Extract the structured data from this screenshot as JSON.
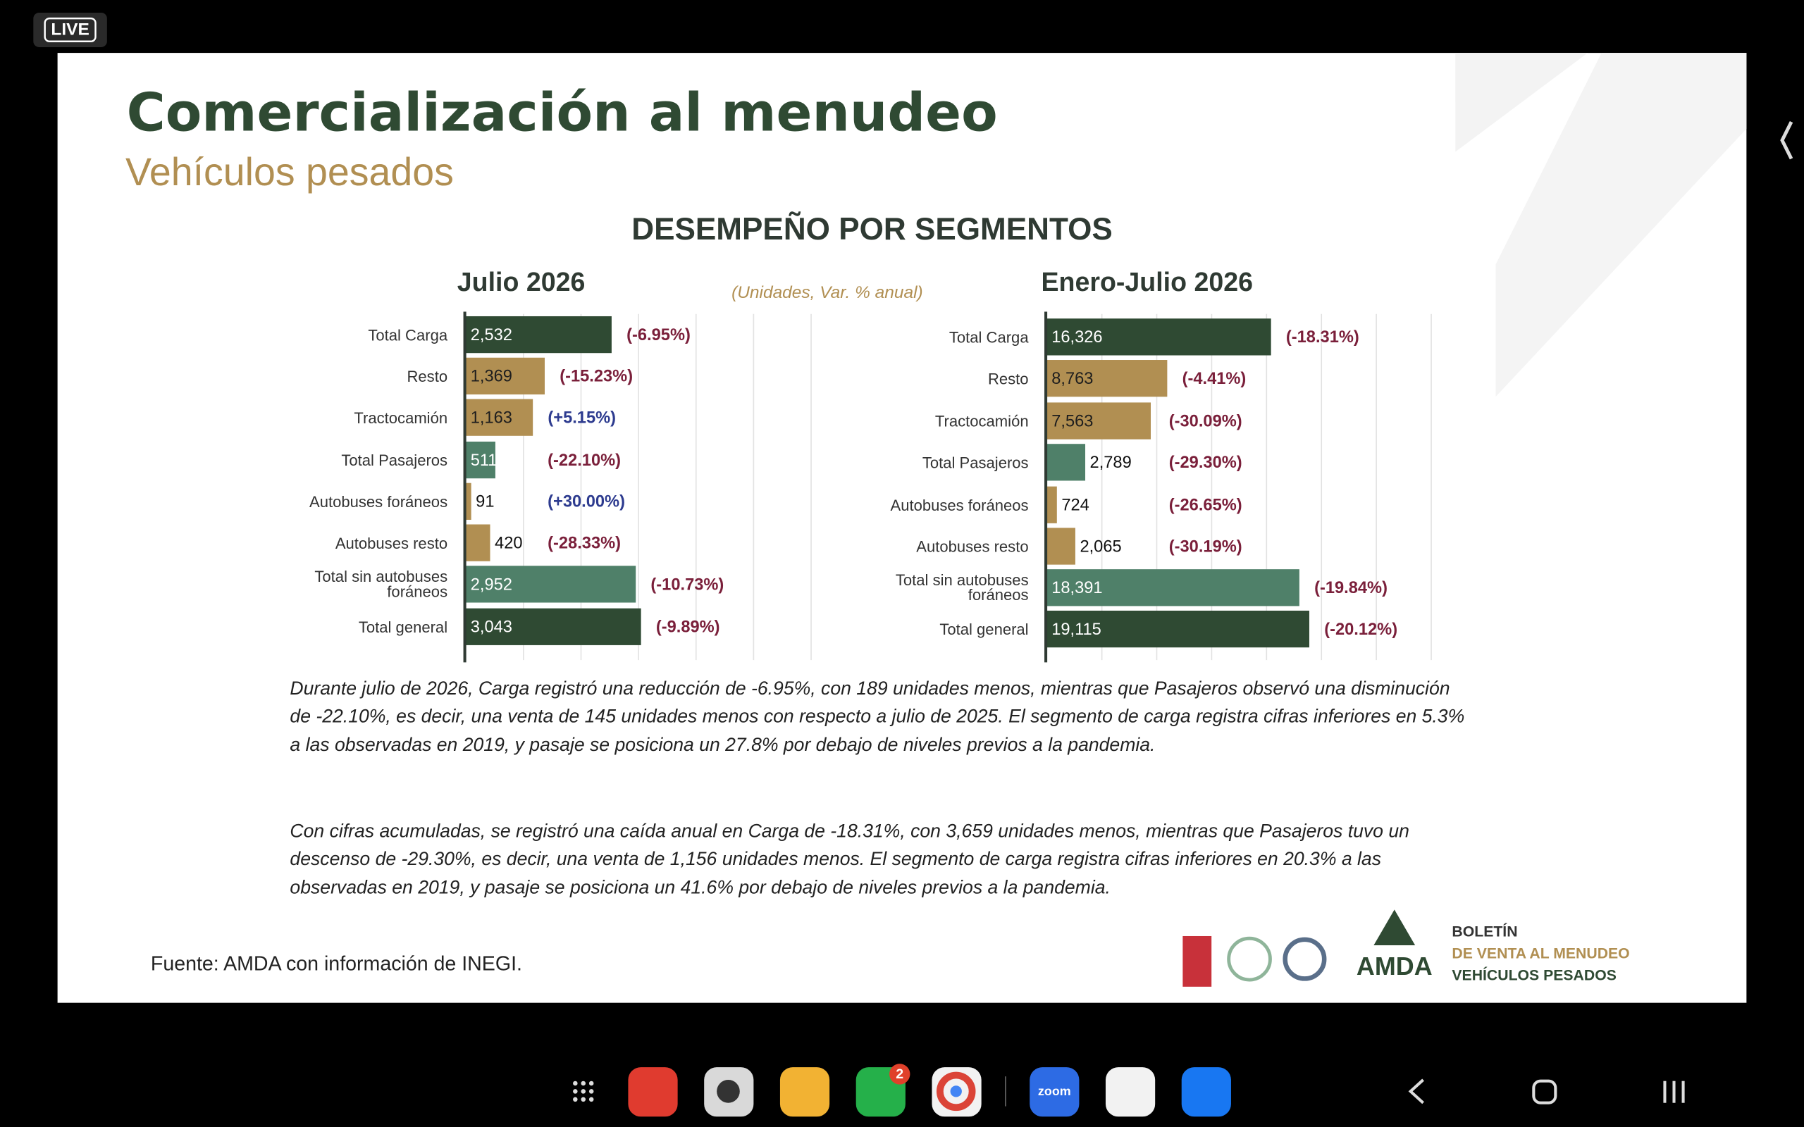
{
  "live_badge": "LIVE",
  "slide": {
    "title": "Comercialización al menudeo",
    "subtitle": "Vehículos pesados",
    "section_title": "DESEMPEÑO POR SEGMENTOS",
    "units_note": "(Unidades, Var. % anual)",
    "paragraphs": [
      "Durante julio de 2026, Carga registró una reducción de -6.95%, con 189 unidades menos, mientras que Pasajeros observó una disminución de -22.10%, es decir, una venta de 145 unidades menos con respecto a julio de 2025. El segmento de carga registra cifras inferiores en 5.3% a las observadas en 2019, y pasaje se posiciona un 27.8% por debajo de niveles previos a la pandemia.",
      "Con cifras acumuladas, se registró una caída anual en Carga de -18.31%, con 3,659 unidades menos, mientras que Pasajeros tuvo un descenso de -29.30%, es decir, una venta de 1,156 unidades menos. El segmento de carga registra cifras inferiores en 20.3% a las observadas en 2019, y pasaje se posiciona un 41.6% por debajo de niveles previos a la pandemia."
    ],
    "source": "Fuente: AMDA con información de INEGI.",
    "logo_text": "AMDA",
    "bulletin": [
      "BOLETÍN",
      "DE VENTA AL MENUDEO",
      "VEHÍCULOS PESADOS"
    ]
  },
  "chart_data": [
    {
      "type": "hbar",
      "title": "Julio 2026",
      "categories": [
        "Total Carga",
        "Resto",
        "Tractocamión",
        "Total Pasajeros",
        "Autobuses foráneos",
        "Autobuses resto",
        "Total sin autobuses foráneos",
        "Total general"
      ],
      "values": [
        2532,
        1369,
        1163,
        511,
        91,
        420,
        2952,
        3043
      ],
      "value_labels": [
        "2,532",
        "1,369",
        "1,163",
        "511",
        "91",
        "420",
        "2,952",
        "3,043"
      ],
      "change_labels": [
        "(-6.95%)",
        "(-15.23%)",
        "(+5.15%)",
        "(-22.10%)",
        "(+30.00%)",
        "(-28.33%)",
        "(-10.73%)",
        "(-9.89%)"
      ],
      "colors": [
        "#2f4a33",
        "#b18f52",
        "#b18f52",
        "#4f8069",
        "#b18f52",
        "#b18f52",
        "#4f8069",
        "#2f4a33"
      ],
      "xlim": [
        0,
        6000
      ],
      "xticks": [
        0,
        1000,
        2000,
        3000,
        4000,
        5000,
        6000
      ],
      "grid": true
    },
    {
      "type": "hbar",
      "title": "Enero-Julio 2026",
      "categories": [
        "Total Carga",
        "Resto",
        "Tractocamión",
        "Total Pasajeros",
        "Autobuses foráneos",
        "Autobuses resto",
        "Total sin autobuses foráneos",
        "Total general"
      ],
      "values": [
        16326,
        8763,
        7563,
        2789,
        724,
        2065,
        18391,
        19115
      ],
      "value_labels": [
        "16,326",
        "8,763",
        "7,563",
        "2,789",
        "724",
        "2,065",
        "18,391",
        "19,115"
      ],
      "change_labels": [
        "(-18.31%)",
        "(-4.41%)",
        "(-30.09%)",
        "(-29.30%)",
        "(-26.65%)",
        "(-30.19%)",
        "(-19.84%)",
        "(-20.12%)"
      ],
      "colors": [
        "#2f4a33",
        "#b18f52",
        "#b18f52",
        "#4f8069",
        "#b18f52",
        "#b18f52",
        "#4f8069",
        "#2f4a33"
      ],
      "xlim": [
        0,
        28000
      ],
      "xticks": [
        0,
        4000,
        8000,
        12000,
        16000,
        20000,
        24000,
        28000
      ],
      "grid": true
    }
  ],
  "taskbar": {
    "whatsapp_badge": "2",
    "zoom_label": "zoom"
  }
}
